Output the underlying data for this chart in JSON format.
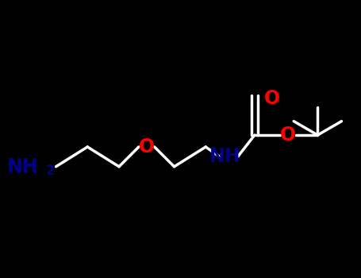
{
  "background_color": "#000000",
  "bond_color": "#000000",
  "line_color": "#ffffff",
  "n_color": "#00008B",
  "o_color": "#FF0000",
  "atom_labels": {
    "NH2": {
      "text": "NH2",
      "color": "#191970",
      "fontsize": 22
    },
    "O_ether": {
      "text": "O",
      "color": "#FF0000",
      "fontsize": 22
    },
    "NH": {
      "text": "NH",
      "color": "#191970",
      "fontsize": 22
    },
    "O_double": {
      "text": "O",
      "color": "#FF0000",
      "fontsize": 22
    },
    "O_single": {
      "text": "O",
      "color": "#FF0000",
      "fontsize": 22
    }
  },
  "title": "",
  "figsize": [
    4.55,
    3.5
  ],
  "dpi": 100
}
